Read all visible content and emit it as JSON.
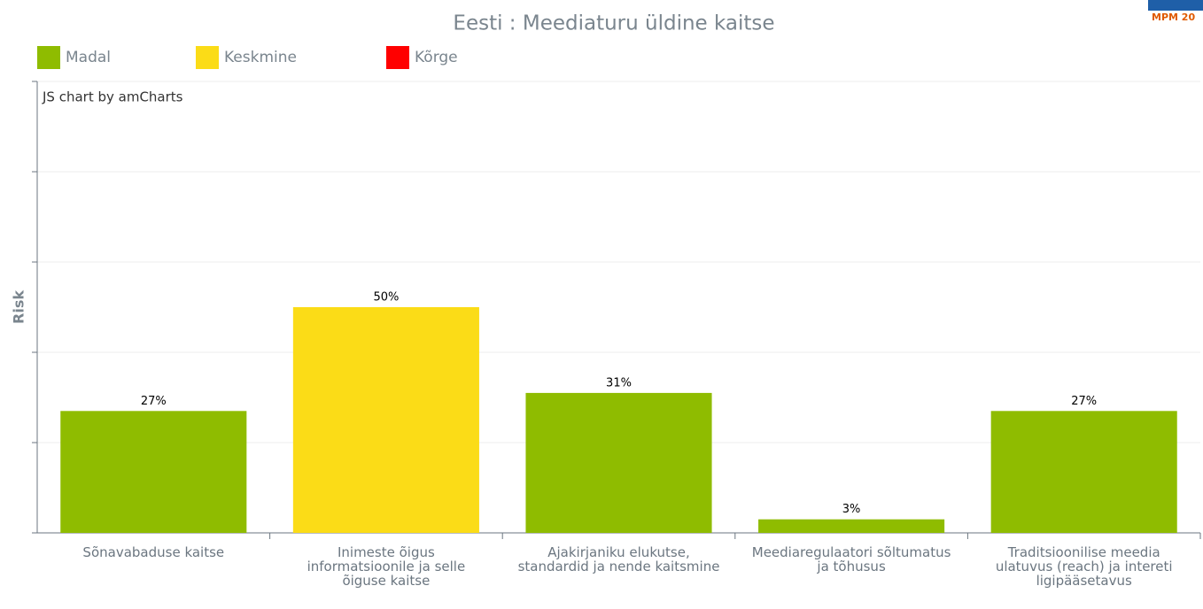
{
  "chart_data": {
    "type": "bar",
    "title": "Eesti : Meediaturu üldine kaitse",
    "y_label": "Risk",
    "annotation": "JS chart by amCharts",
    "logo_text": "MPM 20",
    "legend": [
      {
        "name": "Madal",
        "color": "#8fbc00"
      },
      {
        "name": "Keskmine",
        "color": "#fbdc17"
      },
      {
        "name": "Kõrge",
        "color": "#ff0000"
      }
    ],
    "categories": [
      "Sõnavabaduse kaitse",
      "Inimeste õigus informatsioonile ja selle õiguse kaitse",
      "Ajakirjaniku elukutse, standardid ja nende kaitsmine",
      "Meediaregulaatori sõltumatus ja tõhusus",
      "Traditsioonilise meedia ulatuvus (reach) ja intereti ligipääsetavus"
    ],
    "values": [
      27,
      50,
      31,
      3,
      27
    ],
    "value_labels": [
      "27%",
      "50%",
      "31%",
      "3%",
      "27%"
    ],
    "colors": [
      "#8fbc00",
      "#fbdc17",
      "#8fbc00",
      "#8fbc00",
      "#8fbc00"
    ],
    "ylim": [
      0,
      100
    ],
    "yticks": [
      0,
      20,
      40,
      60,
      80,
      100
    ],
    "grid": true
  }
}
